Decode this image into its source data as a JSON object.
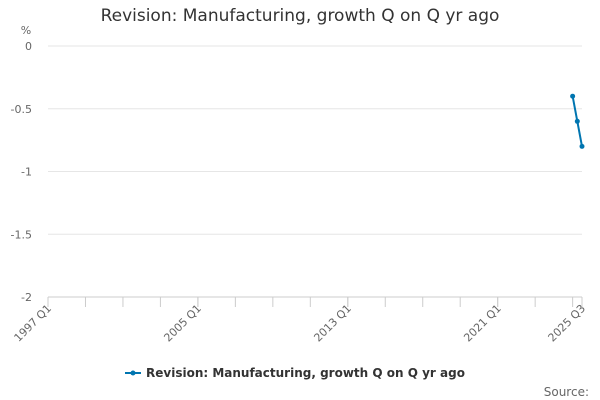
{
  "chart_data": {
    "type": "line",
    "title": "Revision: Manufacturing, growth Q on Q yr ago",
    "ylabel": "%",
    "xlabel": "",
    "ylim": [
      -2,
      0
    ],
    "yticks": [
      0,
      -0.5,
      -1,
      -1.5,
      -2
    ],
    "x_tick_labels": [
      "1997 Q1",
      "2005 Q1",
      "2013 Q1",
      "2021 Q1",
      "2025 Q3"
    ],
    "grid": true,
    "legend_position": "bottom",
    "series": [
      {
        "name": "Revision: Manufacturing, growth Q on Q yr ago",
        "color": "#0075b0",
        "x": [
          "2025 Q1",
          "2025 Q2",
          "2025 Q3"
        ],
        "values": [
          -0.4,
          -0.6,
          -0.8
        ]
      }
    ]
  },
  "source_text": "Source:"
}
